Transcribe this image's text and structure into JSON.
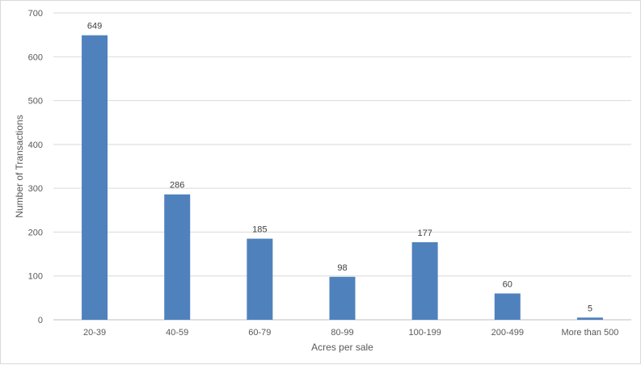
{
  "chart_data": {
    "type": "bar",
    "categories": [
      "20-39",
      "40-59",
      "60-79",
      "80-99",
      "100-199",
      "200-499",
      "More than 500"
    ],
    "values": [
      649,
      286,
      185,
      98,
      177,
      60,
      5
    ],
    "xlabel": "Acres per sale",
    "ylabel": "Number of Transactions",
    "ylim": [
      0,
      700
    ],
    "yticks": [
      0,
      100,
      200,
      300,
      400,
      500,
      600,
      700
    ],
    "grid": true,
    "data_labels": true,
    "bar_color": "#4f81bd"
  }
}
